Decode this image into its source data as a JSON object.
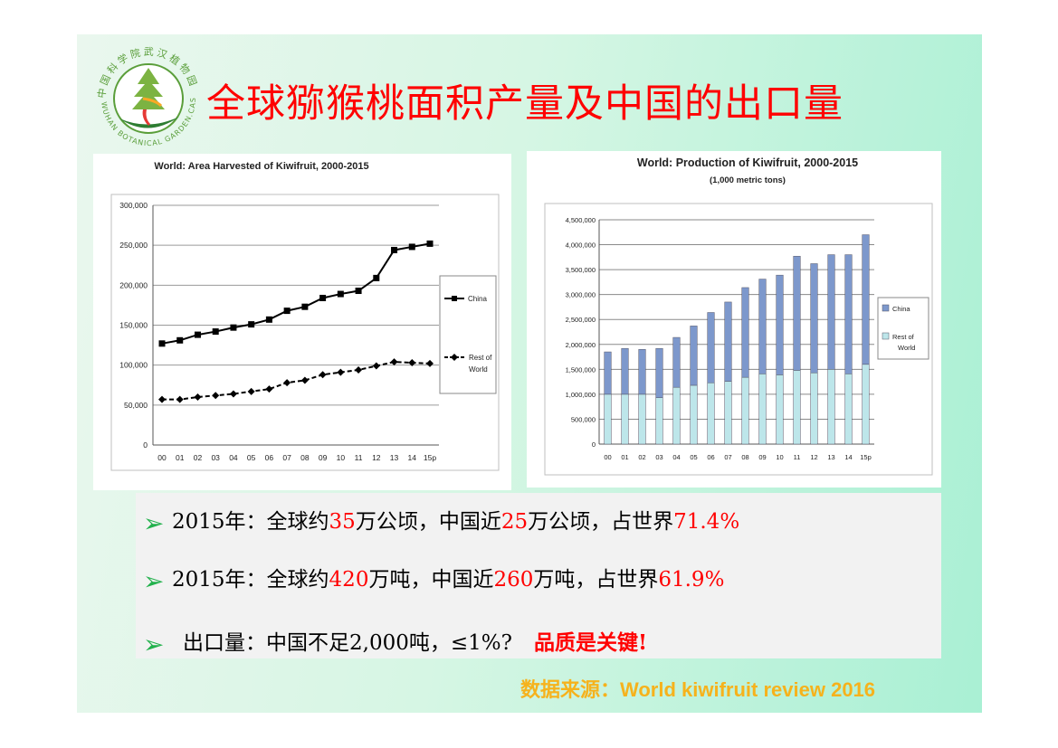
{
  "slide": {
    "title": "全球猕猴桃面积产量及中国的出口量",
    "logo": {
      "top_text": "中国科学院武汉植物园",
      "bottom_text": "WUHAN BOTANICAL GARDEN.CAS",
      "icon": "botanical-garden-tree-logo"
    },
    "bullets": [
      {
        "parts": [
          {
            "text": "2015年：全球约",
            "red": false
          },
          {
            "text": "35",
            "red": true
          },
          {
            "text": "万公顷，中国近",
            "red": false
          },
          {
            "text": "25",
            "red": true
          },
          {
            "text": "万公顷，占世界",
            "red": false
          },
          {
            "text": "71.4%",
            "red": true
          }
        ]
      },
      {
        "parts": [
          {
            "text": "2015年：全球约",
            "red": false
          },
          {
            "text": "420",
            "red": true
          },
          {
            "text": "万吨，中国近",
            "red": false
          },
          {
            "text": "260",
            "red": true
          },
          {
            "text": "万吨，占世界",
            "red": false
          },
          {
            "text": "61.9%",
            "red": true
          }
        ]
      },
      {
        "parts": [
          {
            "text": "出口量：中国不足2,000吨，≤1%?",
            "red": false
          },
          {
            "text": "品质是关键!",
            "red": true
          }
        ]
      }
    ],
    "source": "数据来源：World kiwifruit review 2016"
  },
  "chart_data": [
    {
      "type": "line",
      "title": "World: Area Harvested of Kiwifruit, 2000-2015",
      "categories": [
        "00",
        "01",
        "02",
        "03",
        "04",
        "05",
        "06",
        "07",
        "08",
        "09",
        "10",
        "11",
        "12",
        "13",
        "14",
        "15p"
      ],
      "ylim": [
        0,
        300000
      ],
      "yticks": [
        0,
        50000,
        100000,
        150000,
        200000,
        250000,
        300000
      ],
      "ytick_labels": [
        "0",
        "50,000",
        "100,000",
        "150,000",
        "200,000",
        "250,000",
        "300,000"
      ],
      "grid": true,
      "legend_position": "right",
      "series": [
        {
          "name": "China",
          "color": "#000000",
          "marker": "square",
          "dash": false,
          "values": [
            127000,
            131000,
            138000,
            142000,
            147000,
            151000,
            157000,
            168000,
            173000,
            184000,
            189000,
            193000,
            209000,
            244000,
            248000,
            252000
          ]
        },
        {
          "name": "Rest of World",
          "color": "#000000",
          "marker": "diamond",
          "dash": true,
          "values": [
            57000,
            57000,
            60000,
            62000,
            64000,
            67000,
            70000,
            78000,
            81000,
            88000,
            91000,
            94000,
            99000,
            104000,
            103000,
            102000
          ]
        }
      ]
    },
    {
      "type": "bar",
      "stacked": true,
      "title": "World: Production of Kiwifruit, 2000-2015",
      "subtitle": "(1,000 metric tons)",
      "categories": [
        "00",
        "01",
        "02",
        "03",
        "04",
        "05",
        "06",
        "07",
        "08",
        "09",
        "10",
        "11",
        "12",
        "13",
        "14",
        "15p"
      ],
      "ylim": [
        0,
        4500000
      ],
      "yticks": [
        0,
        500000,
        1000000,
        1500000,
        2000000,
        2500000,
        3000000,
        3500000,
        4000000,
        4500000
      ],
      "ytick_labels": [
        "0",
        "500,000",
        "1,000,000",
        "1,500,000",
        "2,000,000",
        "2,500,000",
        "3,000,000",
        "3,500,000",
        "4,000,000",
        "4,500,000"
      ],
      "grid": true,
      "legend_position": "right",
      "series": [
        {
          "name": "Rest of World",
          "color": "#bde6ea",
          "values": [
            1000000,
            1000000,
            1000000,
            930000,
            1140000,
            1180000,
            1230000,
            1260000,
            1340000,
            1410000,
            1390000,
            1480000,
            1430000,
            1500000,
            1410000,
            1600000
          ]
        },
        {
          "name": "China",
          "color": "#7d98cc",
          "values": [
            850000,
            920000,
            900000,
            990000,
            1000000,
            1190000,
            1410000,
            1590000,
            1800000,
            1900000,
            2000000,
            2290000,
            2190000,
            2300000,
            2390000,
            2600000
          ]
        }
      ]
    }
  ]
}
